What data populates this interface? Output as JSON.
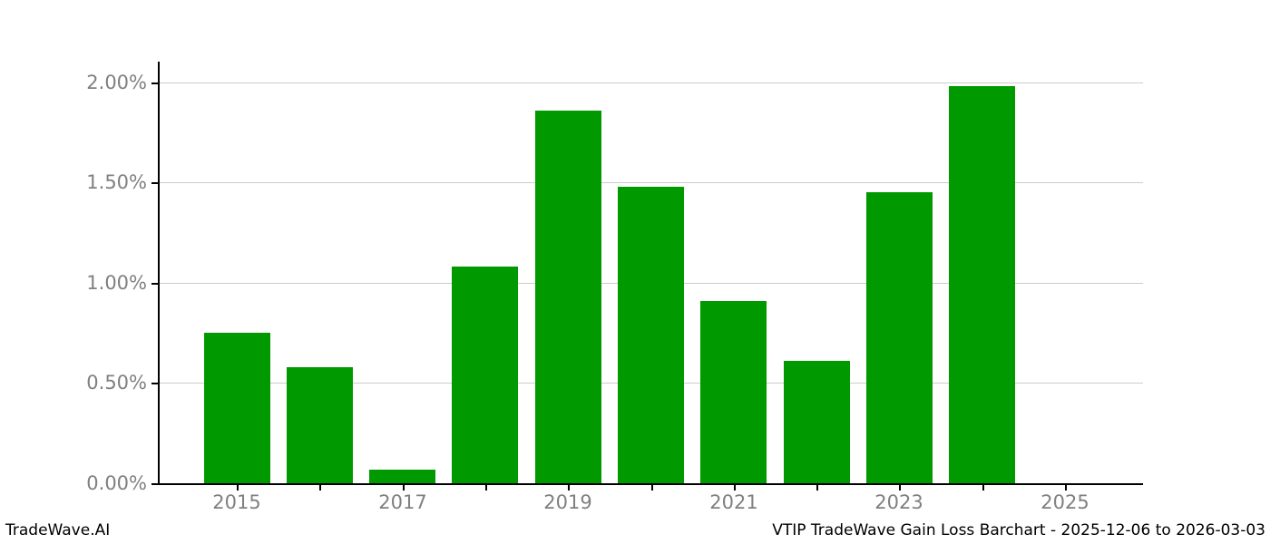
{
  "footer": {
    "brand": "TradeWave.AI",
    "title": "VTIP TradeWave Gain Loss Barchart - 2025-12-06 to 2026-03-03"
  },
  "chart_data": {
    "type": "bar",
    "title": "VTIP TradeWave Gain Loss Barchart - 2025-12-06 to 2026-03-03",
    "categories": [
      "2015",
      "2016",
      "2017",
      "2018",
      "2019",
      "2020",
      "2021",
      "2022",
      "2023",
      "2024",
      "2025"
    ],
    "values": [
      0.75,
      0.58,
      0.07,
      1.08,
      1.86,
      1.48,
      0.91,
      0.61,
      1.45,
      1.98,
      0.0
    ],
    "value_unit": "%",
    "xlabel": "",
    "ylabel": "",
    "ylim": [
      0,
      2.09
    ],
    "ytick_values": [
      0,
      0.5,
      1.0,
      1.5,
      2.0
    ],
    "ytick_labels": [
      "0.00%",
      "0.50%",
      "1.00%",
      "1.50%",
      "2.00%"
    ],
    "xtick_labels_shown": [
      "2015",
      "2017",
      "2019",
      "2021",
      "2023",
      "2025"
    ],
    "grid": "horizontal",
    "legend": "none",
    "colors": {
      "bar": "#009a00",
      "grid": "#cccccc",
      "tick_label": "#808080",
      "axis": "#000000",
      "background": "#ffffff",
      "footer_text": "#000000"
    }
  }
}
